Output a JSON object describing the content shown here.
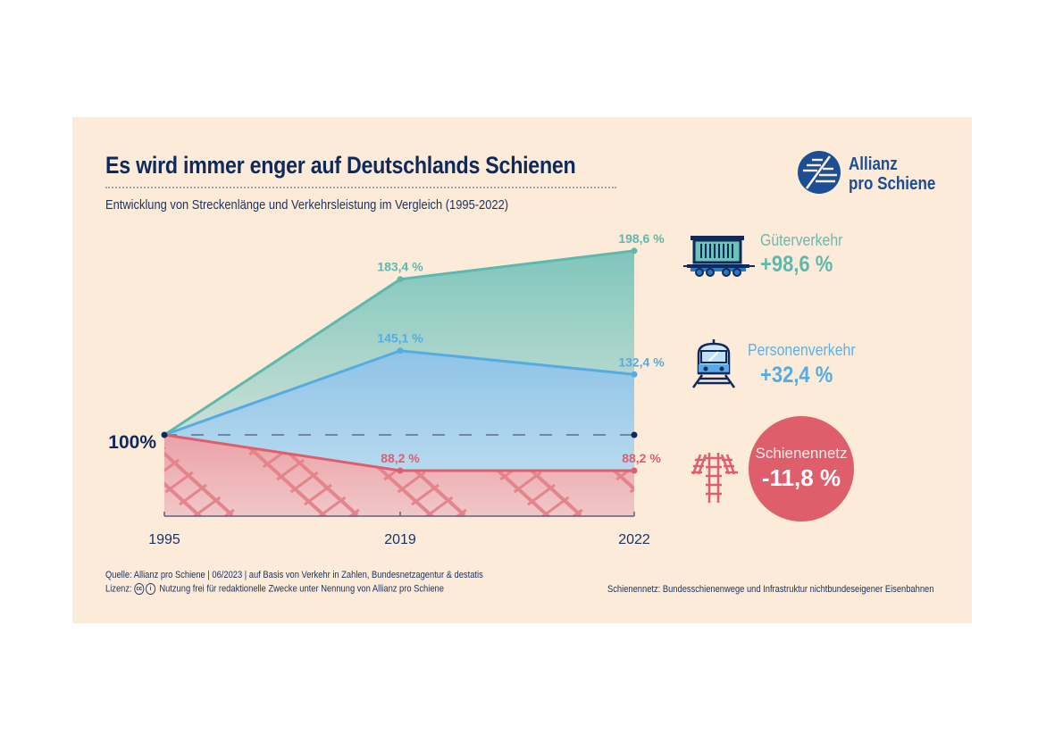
{
  "header": {
    "title": "Es wird immer enger auf Deutschlands Schienen",
    "subtitle": "Entwicklung von Streckenlänge und Verkehrsleistung im Vergleich (1995-2022)"
  },
  "logo": {
    "line1": "Allianz",
    "line2": "pro Schiene"
  },
  "colors": {
    "gueter": "#5fb8ad",
    "personen": "#55ace3",
    "schienennetz": "#df5e6c",
    "navy": "#0f2a5a",
    "background": "#fcebd9"
  },
  "stats": {
    "gueter": {
      "icon": "freight-wagon-icon",
      "label": "Güterverkehr",
      "value": "+98,6 %"
    },
    "personen": {
      "icon": "passenger-train-icon",
      "label": "Personenverkehr",
      "value": "+32,4 %"
    },
    "schienennetz": {
      "icon": "rail-tracks-icon",
      "label": "Schienennetz",
      "value": "-11,8 %"
    }
  },
  "footer": {
    "source": "Quelle: Allianz pro Schiene | 06/2023 | auf Basis von Verkehr in Zahlen, Bundesnetzagentur & destatis",
    "license_label": "Lizenz:",
    "license_text": "Nutzung frei für redaktionelle Zwecke unter Nennung von Allianz pro Schiene",
    "note": "Schienennetz: Bundesschienenwege und Infrastruktur nichtbundeseigener Eisenbahnen"
  },
  "chart_data": {
    "type": "area",
    "title": "Es wird immer enger auf Deutschlands Schienen",
    "x": [
      "1995",
      "2019",
      "2022"
    ],
    "xlabel": "",
    "ylabel": "",
    "baseline_label": "100%",
    "baseline": 100,
    "grid": false,
    "series": [
      {
        "name": "Güterverkehr",
        "values": [
          100,
          183.4,
          198.6
        ],
        "labels": [
          "",
          "183,4 %",
          "198,6 %"
        ]
      },
      {
        "name": "Personenverkehr",
        "values": [
          100,
          145.1,
          132.4
        ],
        "labels": [
          "",
          "145,1 %",
          "132,4 %"
        ]
      },
      {
        "name": "Schienennetz",
        "values": [
          100,
          88.2,
          88.2
        ],
        "labels": [
          "",
          "88,2 %",
          "88,2 %"
        ]
      }
    ]
  }
}
